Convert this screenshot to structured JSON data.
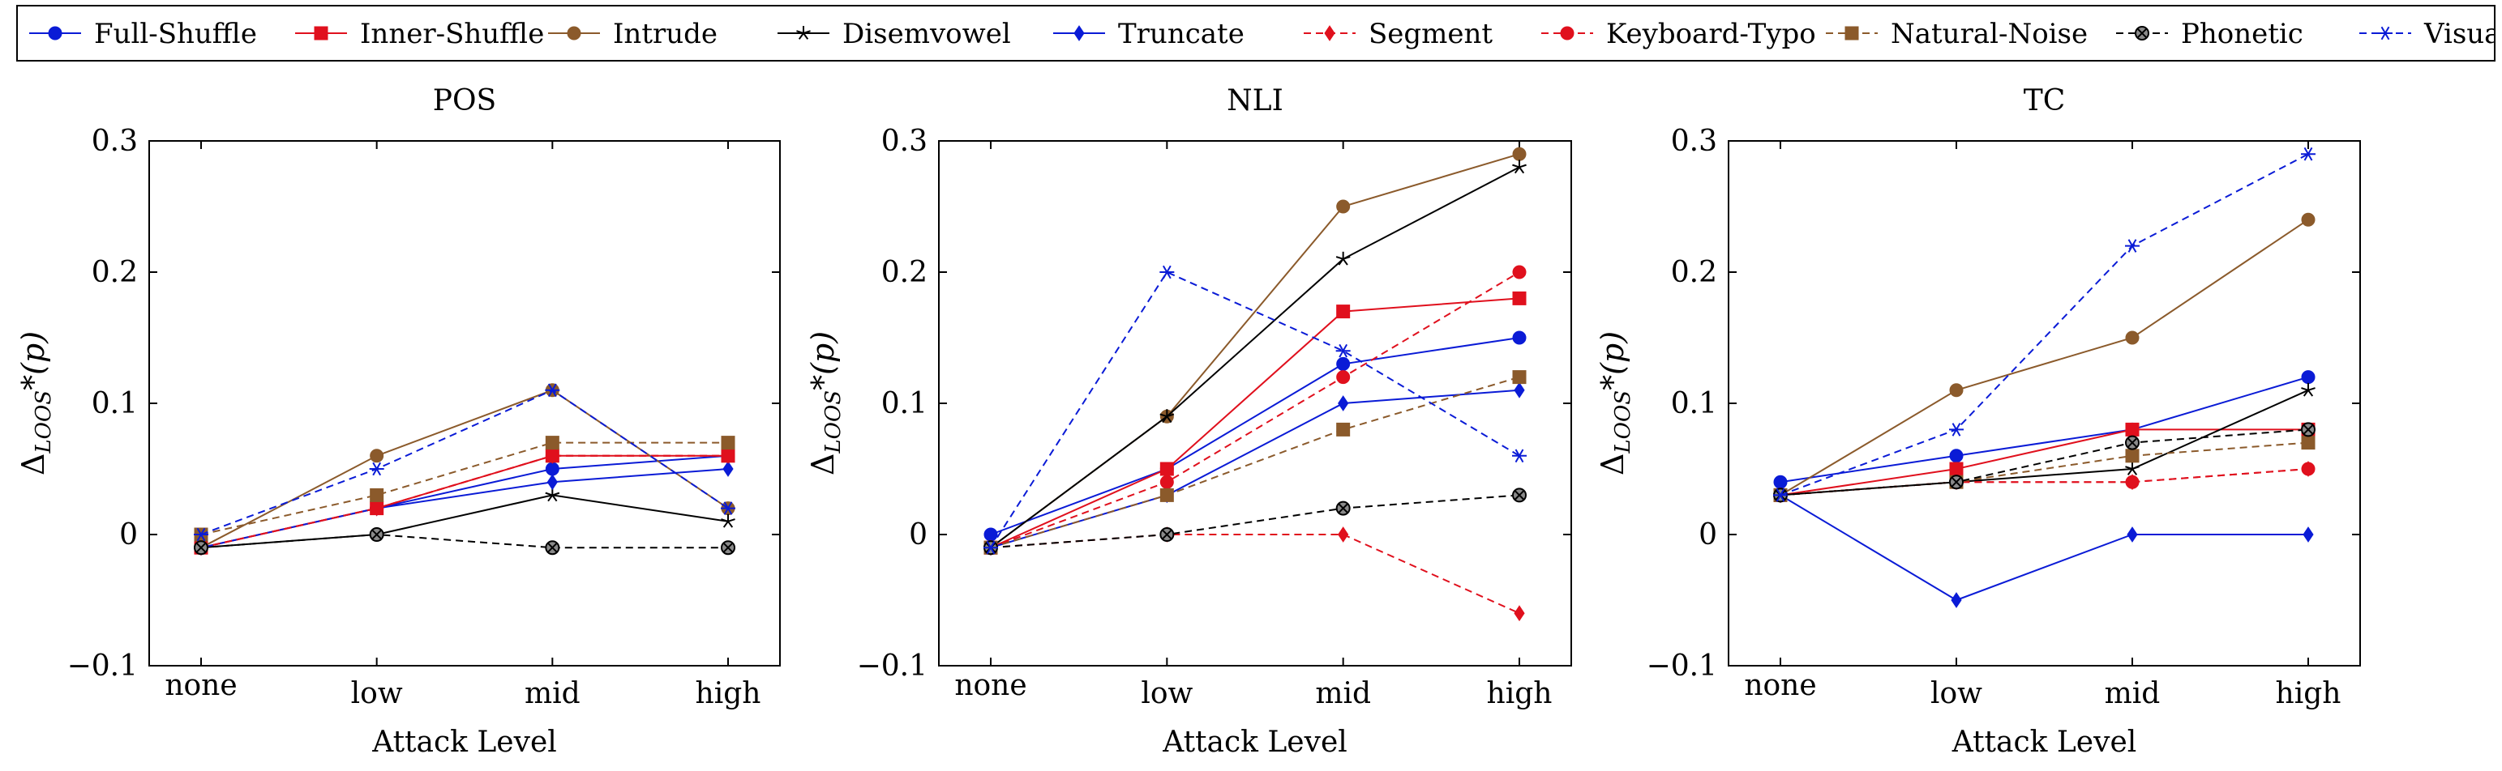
{
  "legend": {
    "entries": [
      {
        "name": "Full-Shuffle",
        "color": "#0a1bd6",
        "dash": false,
        "marker": "circle"
      },
      {
        "name": "Inner-Shuffle",
        "color": "#e0101d",
        "dash": false,
        "marker": "square"
      },
      {
        "name": "Intrude",
        "color": "#8b5a2b",
        "dash": false,
        "marker": "circle"
      },
      {
        "name": "Disemvowel",
        "color": "#000000",
        "dash": false,
        "marker": "star"
      },
      {
        "name": "Truncate",
        "color": "#0a1bd6",
        "dash": false,
        "marker": "diamond"
      },
      {
        "name": "Segment",
        "color": "#e0101d",
        "dash": true,
        "marker": "diamond"
      },
      {
        "name": "Keyboard-Typo",
        "color": "#e0101d",
        "dash": true,
        "marker": "circle"
      },
      {
        "name": "Natural-Noise",
        "color": "#8b5a2b",
        "dash": true,
        "marker": "square"
      },
      {
        "name": "Phonetic",
        "color": "#000000",
        "dash": true,
        "marker": "otimes"
      },
      {
        "name": "Visual",
        "color": "#0a1bd6",
        "dash": true,
        "marker": "asterisk"
      }
    ]
  },
  "chart_data": [
    {
      "type": "line",
      "title": "POS",
      "xlabel": "Attack Level",
      "ylabel": "Δ_{LOOS*}(p)",
      "ylabel_main": "Δ",
      "ylabel_sub": "LOOS",
      "ylabel_tail": "*(p)",
      "categories": [
        "none",
        "low",
        "mid",
        "high"
      ],
      "ylim": [
        -0.1,
        0.3
      ],
      "yticks": [
        -0.1,
        0,
        0.1,
        0.2,
        0.3
      ],
      "ytick_labels": [
        "−0.1",
        "0",
        "0.1",
        "0.2",
        "0.3"
      ],
      "series": [
        {
          "name": "Full-Shuffle",
          "values": [
            -0.01,
            0.02,
            0.05,
            0.06
          ]
        },
        {
          "name": "Inner-Shuffle",
          "values": [
            -0.01,
            0.02,
            0.06,
            0.06
          ]
        },
        {
          "name": "Intrude",
          "values": [
            -0.01,
            0.06,
            0.11,
            0.02
          ]
        },
        {
          "name": "Disemvowel",
          "values": [
            -0.01,
            0.0,
            0.03,
            0.01
          ]
        },
        {
          "name": "Truncate",
          "values": [
            -0.01,
            0.02,
            0.04,
            0.05
          ]
        },
        {
          "name": "Segment",
          "values": [
            -0.01,
            0.02,
            0.06,
            0.06
          ]
        },
        {
          "name": "Keyboard-Typo",
          "values": [
            -0.01,
            0.02,
            0.06,
            0.06
          ]
        },
        {
          "name": "Natural-Noise",
          "values": [
            0.0,
            0.03,
            0.07,
            0.07
          ]
        },
        {
          "name": "Phonetic",
          "values": [
            -0.01,
            0.0,
            -0.01,
            -0.01
          ]
        },
        {
          "name": "Visual",
          "values": [
            0.0,
            0.05,
            0.11,
            0.02
          ]
        }
      ]
    },
    {
      "type": "line",
      "title": "NLI",
      "xlabel": "Attack Level",
      "ylabel": "Δ_{LOOS*}(p)",
      "ylabel_main": "Δ",
      "ylabel_sub": "LOOS",
      "ylabel_tail": "*(p)",
      "categories": [
        "none",
        "low",
        "mid",
        "high"
      ],
      "ylim": [
        -0.1,
        0.3
      ],
      "yticks": [
        -0.1,
        0,
        0.1,
        0.2,
        0.3
      ],
      "ytick_labels": [
        "−0.1",
        "0",
        "0.1",
        "0.2",
        "0.3"
      ],
      "series": [
        {
          "name": "Full-Shuffle",
          "values": [
            0.0,
            0.05,
            0.13,
            0.15
          ]
        },
        {
          "name": "Inner-Shuffle",
          "values": [
            -0.01,
            0.05,
            0.17,
            0.18
          ]
        },
        {
          "name": "Intrude",
          "values": [
            -0.01,
            0.09,
            0.25,
            0.29
          ]
        },
        {
          "name": "Disemvowel",
          "values": [
            -0.01,
            0.09,
            0.21,
            0.28
          ]
        },
        {
          "name": "Truncate",
          "values": [
            -0.01,
            0.03,
            0.1,
            0.11
          ]
        },
        {
          "name": "Segment",
          "values": [
            -0.01,
            0.0,
            0.0,
            -0.06
          ]
        },
        {
          "name": "Keyboard-Typo",
          "values": [
            -0.01,
            0.04,
            0.12,
            0.2
          ]
        },
        {
          "name": "Natural-Noise",
          "values": [
            -0.01,
            0.03,
            0.08,
            0.12
          ]
        },
        {
          "name": "Phonetic",
          "values": [
            -0.01,
            0.0,
            0.02,
            0.03
          ]
        },
        {
          "name": "Visual",
          "values": [
            -0.01,
            0.2,
            0.14,
            0.06
          ]
        }
      ]
    },
    {
      "type": "line",
      "title": "TC",
      "xlabel": "Attack Level",
      "ylabel": "Δ_{LOOS*}(p)",
      "ylabel_main": "Δ",
      "ylabel_sub": "LOOS",
      "ylabel_tail": "*(p)",
      "categories": [
        "none",
        "low",
        "mid",
        "high"
      ],
      "ylim": [
        -0.1,
        0.3
      ],
      "yticks": [
        -0.1,
        0,
        0.1,
        0.2,
        0.3
      ],
      "ytick_labels": [
        "−0.1",
        "0",
        "0.1",
        "0.2",
        "0.3"
      ],
      "series": [
        {
          "name": "Full-Shuffle",
          "values": [
            0.04,
            0.06,
            0.08,
            0.12
          ]
        },
        {
          "name": "Inner-Shuffle",
          "values": [
            0.03,
            0.05,
            0.08,
            0.08
          ]
        },
        {
          "name": "Intrude",
          "values": [
            0.03,
            0.11,
            0.15,
            0.24
          ]
        },
        {
          "name": "Disemvowel",
          "values": [
            0.03,
            0.04,
            0.05,
            0.11
          ]
        },
        {
          "name": "Truncate",
          "values": [
            0.03,
            -0.05,
            0.0,
            0.0
          ]
        },
        {
          "name": "Segment",
          "values": [
            0.03,
            0.04,
            0.04,
            0.05
          ]
        },
        {
          "name": "Keyboard-Typo",
          "values": [
            0.03,
            0.04,
            0.04,
            0.05
          ]
        },
        {
          "name": "Natural-Noise",
          "values": [
            0.03,
            0.04,
            0.06,
            0.07
          ]
        },
        {
          "name": "Phonetic",
          "values": [
            0.03,
            0.04,
            0.07,
            0.08
          ]
        },
        {
          "name": "Visual",
          "values": [
            0.03,
            0.08,
            0.22,
            0.29
          ]
        }
      ]
    }
  ]
}
